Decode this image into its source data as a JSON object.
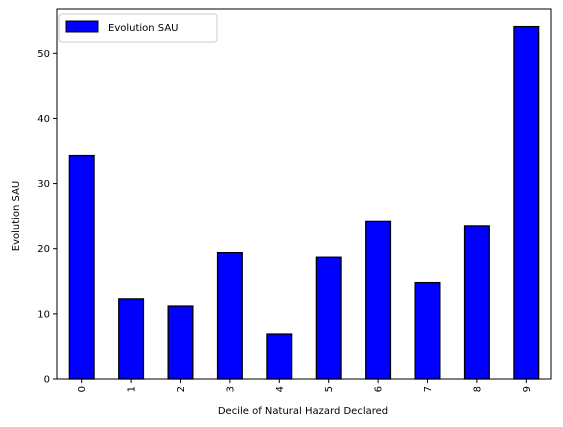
{
  "chart_data": {
    "type": "bar",
    "categories": [
      "0",
      "1",
      "2",
      "3",
      "4",
      "5",
      "6",
      "7",
      "8",
      "9"
    ],
    "series": [
      {
        "name": "Evolution SAU",
        "values": [
          34.3,
          12.3,
          11.2,
          19.4,
          6.9,
          18.7,
          24.2,
          14.8,
          23.5,
          54.1
        ],
        "color": "#0000ff"
      }
    ],
    "xlabel": "Decile of Natural Hazard Declared",
    "ylabel": "Evolution SAU",
    "yticks": [
      0,
      10,
      20,
      30,
      40,
      50
    ],
    "ylim": [
      0,
      56.8
    ],
    "grid": false,
    "legend": "top-left",
    "bar_edge_color": "#000000"
  }
}
